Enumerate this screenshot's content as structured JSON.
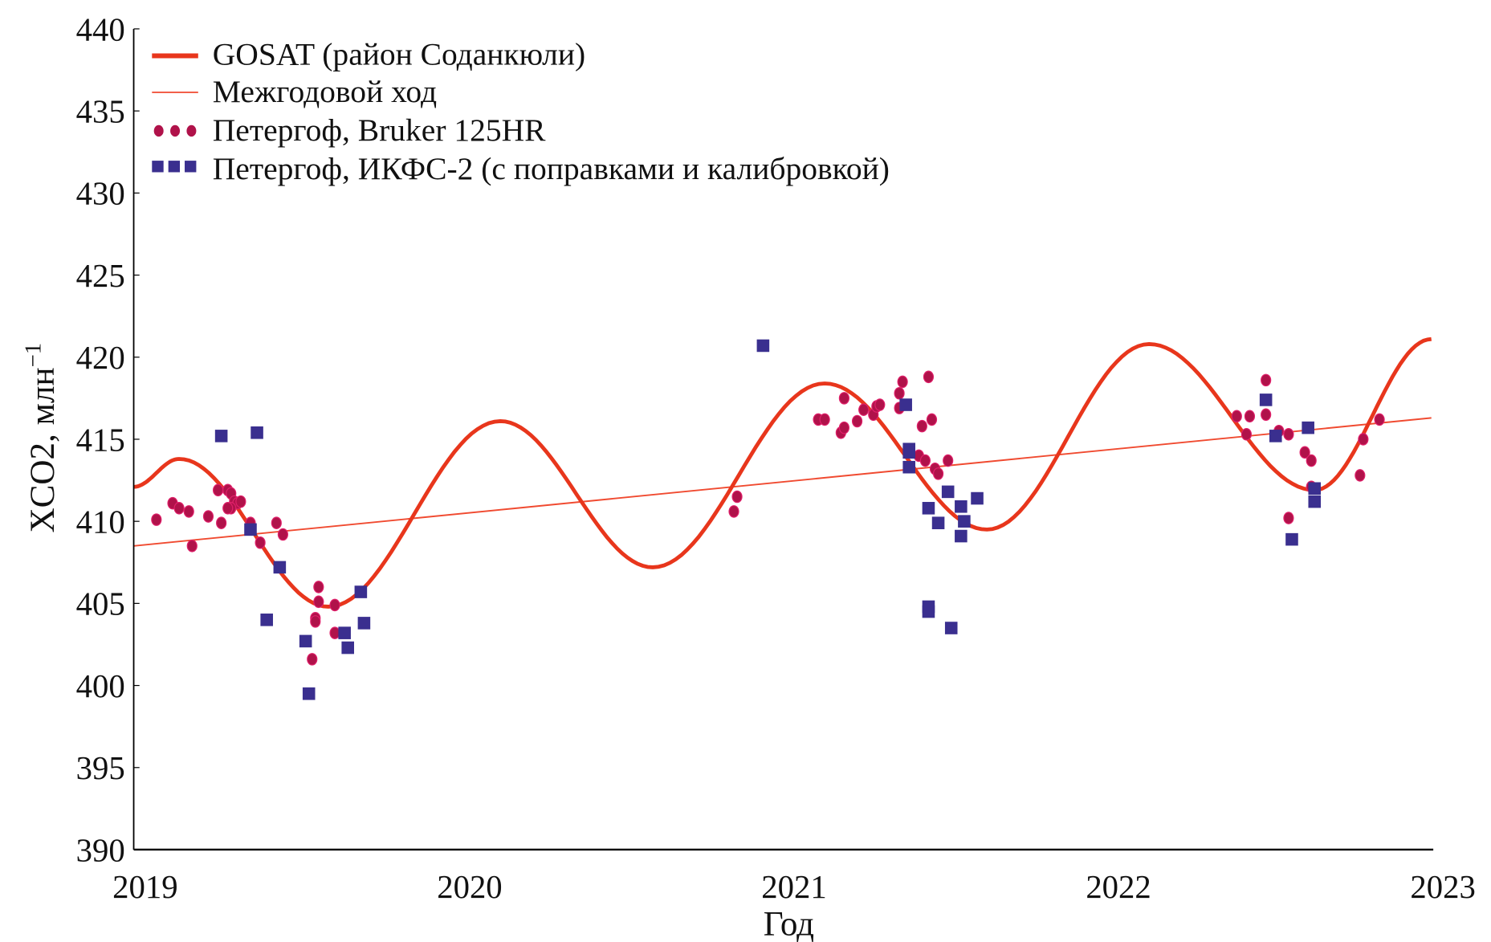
{
  "chart_data": {
    "type": "scatter",
    "xlabel": "Год",
    "ylabel": "XCO2, млн",
    "ylabel_sup": "−1",
    "xlim": [
      2019,
      2023
    ],
    "ylim": [
      390,
      440
    ],
    "xticks": [
      "2019",
      "2020",
      "2021",
      "2022",
      "2023"
    ],
    "yticks": [
      "390",
      "395",
      "400",
      "405",
      "410",
      "415",
      "420",
      "425",
      "430",
      "435",
      "440"
    ],
    "grid": false,
    "legend_position": "top-left",
    "colors": {
      "gosat": "#e8361c",
      "trend": "#f04a30",
      "bruker": "#b0124a",
      "ikfs": "#3a2f8f"
    },
    "series": [
      {
        "name": "GOSAT (район Соданкюли)",
        "kind": "line",
        "x": [
          2019.0,
          2019.14,
          2019.6,
          2020.13,
          2020.6,
          2021.13,
          2021.63,
          2022.13,
          2022.64,
          2023.0
        ],
        "y": [
          412.1,
          413.8,
          404.8,
          416.1,
          407.2,
          418.4,
          409.5,
          420.8,
          411.9,
          421.1
        ]
      },
      {
        "name": "Межгодовой ход",
        "kind": "trend",
        "x": [
          2019.0,
          2023.0
        ],
        "y": [
          408.5,
          416.3
        ]
      },
      {
        "name": "Петергоф, Bruker 125HR",
        "kind": "dots",
        "x": [
          2019.07,
          2019.12,
          2019.14,
          2019.17,
          2019.18,
          2019.23,
          2019.26,
          2019.27,
          2019.29,
          2019.3,
          2019.31,
          2019.32,
          2019.3,
          2019.29,
          2019.33,
          2019.36,
          2019.39,
          2019.44,
          2019.46,
          2019.57,
          2019.57,
          2019.56,
          2019.56,
          2019.62,
          2019.62,
          2019.55,
          2020.86,
          2020.85,
          2021.11,
          2021.13,
          2021.19,
          2021.18,
          2021.19,
          2021.23,
          2021.25,
          2021.28,
          2021.29,
          2021.3,
          2021.37,
          2021.36,
          2021.36,
          2021.45,
          2021.46,
          2021.43,
          2021.42,
          2021.44,
          2021.47,
          2021.48,
          2021.51,
          2022.4,
          2022.44,
          2022.43,
          2022.49,
          2022.49,
          2022.53,
          2022.56,
          2022.56,
          2022.61,
          2022.63,
          2022.63,
          2022.78,
          2022.79,
          2022.84
        ],
        "y": [
          410.1,
          411.1,
          410.8,
          410.6,
          408.5,
          410.3,
          411.9,
          409.9,
          411.9,
          411.7,
          411.2,
          411.1,
          410.8,
          410.8,
          411.2,
          409.9,
          408.7,
          409.9,
          409.2,
          406.0,
          405.1,
          404.1,
          403.9,
          404.9,
          403.2,
          401.6,
          411.5,
          410.6,
          416.2,
          416.2,
          417.5,
          415.4,
          415.7,
          416.1,
          416.8,
          416.5,
          417.0,
          417.1,
          418.5,
          417.8,
          416.9,
          418.8,
          416.2,
          415.8,
          414.0,
          413.7,
          413.2,
          412.9,
          413.7,
          416.4,
          416.4,
          415.3,
          418.6,
          416.5,
          415.5,
          415.3,
          410.2,
          414.2,
          413.7,
          412.1,
          412.8,
          415.0,
          416.2
        ]
      },
      {
        "name": "Петергоф, ИКФС-2 (с поправками и калибровкой)",
        "kind": "squares",
        "x": [
          2019.27,
          2019.38,
          2019.36,
          2019.45,
          2019.41,
          2019.53,
          2019.54,
          2019.65,
          2019.66,
          2019.7,
          2019.71,
          2020.94,
          2021.38,
          2021.39,
          2021.39,
          2021.39,
          2021.45,
          2021.45,
          2021.45,
          2021.48,
          2021.51,
          2021.52,
          2021.55,
          2021.55,
          2021.56,
          2021.6,
          2022.49,
          2022.52,
          2022.57,
          2022.62,
          2022.64,
          2022.64
        ],
        "y": [
          415.2,
          415.4,
          409.5,
          407.2,
          404.0,
          402.7,
          399.5,
          403.2,
          402.3,
          405.7,
          403.8,
          420.7,
          417.1,
          414.4,
          414.2,
          413.3,
          410.8,
          404.8,
          404.5,
          409.9,
          411.8,
          403.5,
          410.9,
          409.1,
          410.0,
          411.4,
          417.4,
          415.2,
          408.9,
          415.7,
          412.0,
          411.2
        ]
      }
    ]
  }
}
